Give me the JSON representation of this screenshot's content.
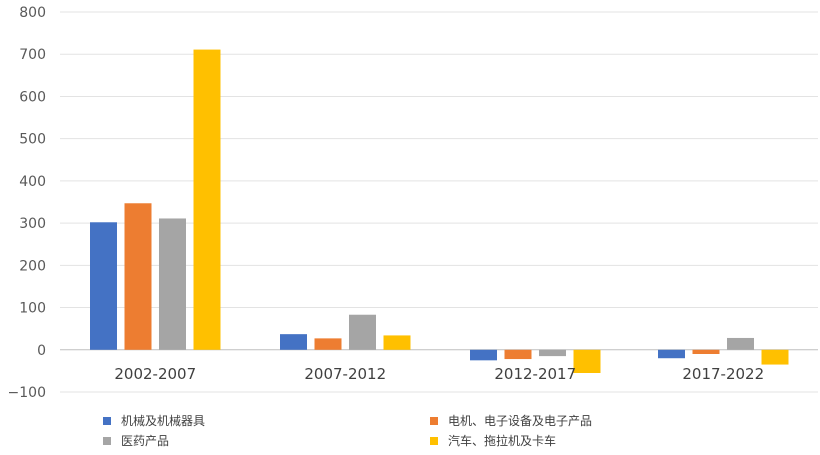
{
  "chart_data": {
    "type": "bar",
    "categories": [
      "2002-2007",
      "2007-2012",
      "2012-2017",
      "2017-2022"
    ],
    "series": [
      {
        "name": "机械及机械器具",
        "color": "#4472c4",
        "values": [
          302,
          37,
          -25,
          -20
        ]
      },
      {
        "name": "电机、电子设备及电子产品",
        "color": "#ed7d31",
        "values": [
          347,
          27,
          -22,
          -10
        ]
      },
      {
        "name": "医药产品",
        "color": "#a5a5a5",
        "values": [
          311,
          83,
          -15,
          28
        ]
      },
      {
        "name": "汽车、拖拉机及卡车",
        "color": "#ffc000",
        "values": [
          711,
          34,
          -55,
          -35
        ]
      }
    ],
    "y_ticks": [
      "800",
      "700",
      "600",
      "500",
      "400",
      "300",
      "200",
      "100",
      "0",
      "−100"
    ],
    "ylim": [
      -100,
      800
    ],
    "grid": true,
    "legend_position": "bottom"
  }
}
